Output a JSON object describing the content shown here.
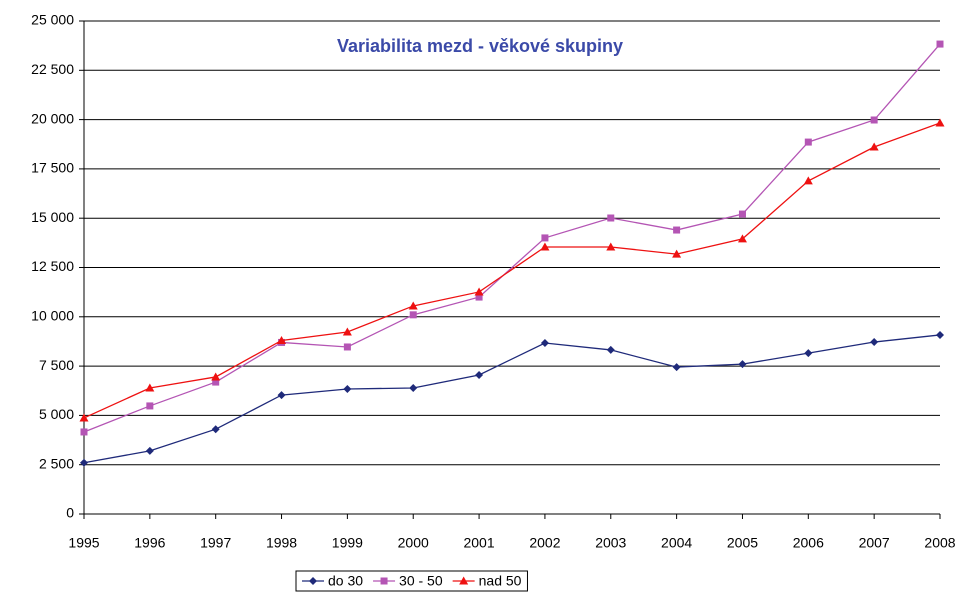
{
  "chart_data": {
    "type": "line",
    "title": "Variabilita mezd - věkové skupiny",
    "x": [
      1995,
      1996,
      1997,
      1998,
      1999,
      2000,
      2001,
      2002,
      2003,
      2004,
      2005,
      2006,
      2007,
      2008
    ],
    "xlim": [
      1995,
      2008
    ],
    "xticks": [
      1995,
      1996,
      1997,
      1998,
      1999,
      2000,
      2001,
      2002,
      2003,
      2004,
      2005,
      2006,
      2007,
      2008
    ],
    "ylim": [
      0,
      25000
    ],
    "yticks": [
      0,
      {
        "value": 2500,
        "label": "2 500"
      },
      {
        "value": 5000,
        "label": "5 000"
      },
      {
        "value": 7500,
        "label": "7 500"
      },
      {
        "value": 10000,
        "label": "10 000"
      },
      {
        "value": 12500,
        "label": "12 500"
      },
      {
        "value": 15000,
        "label": "15 000"
      },
      {
        "value": 17500,
        "label": "17 500"
      },
      {
        "value": 20000,
        "label": "20 000"
      },
      {
        "value": 22500,
        "label": "22 500"
      },
      {
        "value": 25000,
        "label": "25 000"
      }
    ],
    "grid": true,
    "legend": "bottom",
    "series": [
      {
        "name": "do 30",
        "color": "#1f2a7a",
        "marker": "diamond",
        "values": [
          2600,
          3200,
          4300,
          6030,
          6340,
          6390,
          7050,
          8670,
          8320,
          7450,
          7600,
          8160,
          8720,
          9080
        ]
      },
      {
        "name": "30 - 50",
        "color": "#b455b4",
        "marker": "square",
        "values": [
          4160,
          5480,
          6690,
          8700,
          8470,
          10100,
          11000,
          14000,
          15010,
          14400,
          15210,
          18860,
          19980,
          23830
        ]
      },
      {
        "name": "nad 50",
        "color": "#ee1111",
        "marker": "triangle",
        "values": [
          4870,
          6390,
          6950,
          8800,
          9230,
          10550,
          11260,
          13540,
          13540,
          13180,
          13950,
          16890,
          18610,
          19830
        ]
      }
    ]
  }
}
